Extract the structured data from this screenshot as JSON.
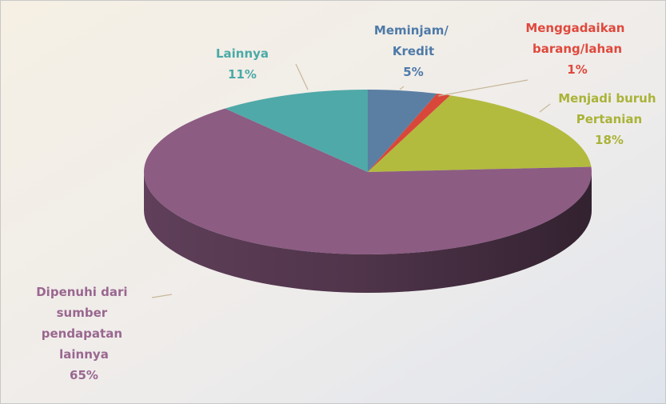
{
  "chart_data": {
    "type": "pie",
    "categories": [
      "Meminjam/ Kredit",
      "Menggadaikan barang/lahan",
      "Menjadi buruh Pertanian",
      "Dipenuhi dari sumber pendapatan lainnya",
      "Lainnya"
    ],
    "values": [
      5,
      1,
      18,
      65,
      11
    ],
    "value_labels": [
      "5%",
      "1%",
      "18%",
      "65%",
      "11%"
    ],
    "colors": [
      "#5b7fa3",
      "#d9473a",
      "#b2bb3e",
      "#8c5c83",
      "#4fa9a8"
    ]
  }
}
